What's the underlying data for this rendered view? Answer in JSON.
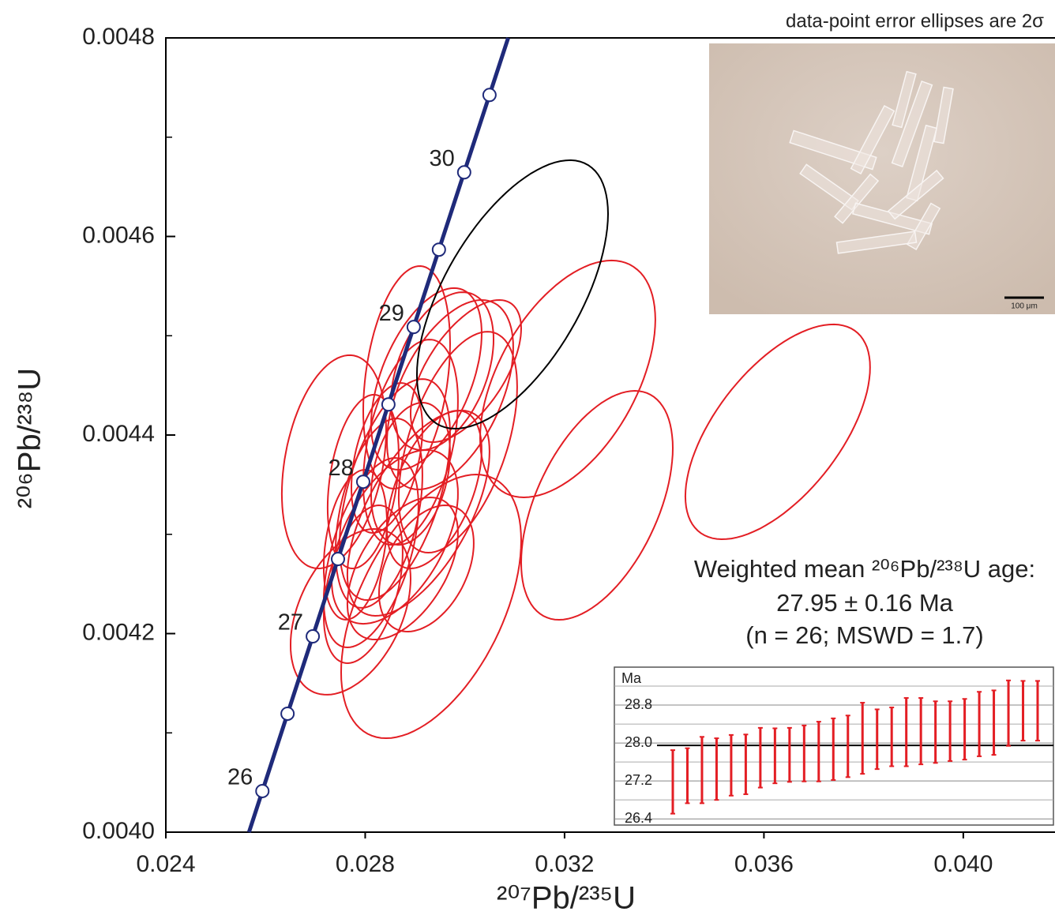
{
  "chart_data": [
    {
      "type": "concordia",
      "x_label": "²⁰⁷Pb/²³⁵U",
      "y_label": "²⁰⁶Pb/²³⁸U",
      "note": "data-point error ellipses are 2σ",
      "annotation": [
        "Weighted mean ²⁰⁶Pb/²³⁸U age:",
        "27.95 ± 0.16 Ma",
        "(n = 26; MSWD = 1.7)"
      ],
      "image_scale_bar": "100 μm",
      "xlim": [
        0.024,
        0.04184
      ],
      "ylim": [
        0.004,
        0.0048
      ],
      "xticks": [
        0.024,
        0.028,
        0.032,
        0.036,
        {
          "value": 0.04,
          "label": "0.040"
        }
      ],
      "yticks": [
        {
          "value": 0.004,
          "label": "0.0040"
        },
        0.0042,
        0.0044,
        0.0046,
        0.0048
      ],
      "minor_yticks": [
        0.0041,
        0.0043,
        0.0045,
        0.0047
      ],
      "concordia": {
        "color": "#1f2a7a",
        "age": [
          26,
          26.5,
          27,
          27.5,
          28,
          28.5,
          29,
          29.5,
          30,
          30.5
        ],
        "x": [
          0.025937,
          0.026442,
          0.026948,
          0.027454,
          0.02796,
          0.028466,
          0.028973,
          0.029479,
          0.029986,
          0.030494
        ],
        "y": [
          0.0040414,
          0.0041193,
          0.0041972,
          0.0042751,
          0.0043529,
          0.0044308,
          0.0045088,
          0.0045867,
          0.0046646,
          0.0047425
        ]
      },
      "series": [
        {
          "color": "#e31e24",
          "x": [
            0.032063,
            0.03265,
            0.036277,
            0.029323,
            0.027374,
            0.027707,
            0.028832,
            0.029228,
            0.029545,
            0.029703,
            0.03002,
            0.028911,
            0.028594,
            0.028277,
            0.028119,
            0.028594,
            0.029069,
            0.02796,
            0.028911,
            0.029386,
            0.028436,
            0.028752,
            0.029861,
            0.02796,
            0.029228,
            0.027802
          ],
          "y": [
            0.0044565,
            0.0043292,
            0.0044032,
            0.0042274,
            0.004373,
            0.0042219,
            0.0044581,
            0.0044565,
            0.0044644,
            0.0044406,
            0.0044644,
            0.0043928,
            0.0043451,
            0.0043213,
            0.0042815,
            0.0042974,
            0.0043213,
            0.0042497,
            0.004361,
            0.0043451,
            0.0043769,
            0.0042656,
            0.0043928,
            0.0043531,
            0.0042656,
            0.0042895
          ],
          "x_err": [
            0.001758,
            0.001521,
            0.001853,
            0.001806,
            0.001046,
            0.001204,
            0.000871,
            0.001109,
            0.00103,
            0.001267,
            0.001109,
            0.00095,
            0.001109,
            0.000871,
            0.00095,
            0.001267,
            0.001426,
            0.000792,
            0.000792,
            0.00095,
            0.000713,
            0.001109,
            0.001188,
            0.000713,
            0.00095,
            0.000634
          ],
          "y_err": [
            0.0001193,
            0.0001153,
            0.0001082,
            0.0001328,
            0.0001074,
            8.35e-05,
            0.0001121,
            9.15e-05,
            7.95e-05,
            9.54e-05,
            7.16e-05,
            0.0001034,
            0.0001113,
            9.54e-05,
            9.54e-05,
            8.75e-05,
            0.0001034,
            7.95e-05,
            7.16e-05,
            7.95e-05,
            7.55e-05,
            7.16e-05,
            0.0001113,
            8.75e-05,
            6.36e-05,
            7.55e-05
          ],
          "rho": [
            0.5,
            0.5,
            0.6,
            0.5,
            0.3,
            0.4,
            0.3,
            0.5,
            0.4,
            0.5,
            0.6,
            0.4,
            0.5,
            0.4,
            0.5,
            0.5,
            0.6,
            0.4,
            0.3,
            0.5,
            0.4,
            0.5,
            0.5,
            0.3,
            0.4,
            0.3
          ]
        },
        {
          "color": "#000000",
          "x": [
            0.030955
          ],
          "y": [
            0.0045416
          ],
          "x_err": [
            0.001917
          ],
          "y_err": [
            0.0001352
          ],
          "rho": [
            0.6
          ]
        }
      ]
    },
    {
      "type": "errorbar",
      "y_label": "Ma",
      "ylim": [
        26.27,
        29.6
      ],
      "yticks": [
        26.4,
        27.2,
        {
          "value": 28,
          "label": "28.0"
        },
        28.8
      ],
      "minor_yticks": [
        26.8,
        27.6,
        28.4,
        29.2
      ],
      "mean": 27.95,
      "color": "#e31e24",
      "values": [
        27.18,
        27.31,
        27.43,
        27.45,
        27.53,
        27.55,
        27.69,
        27.73,
        27.75,
        27.78,
        27.82,
        27.87,
        27.93,
        28.1,
        28.08,
        28.13,
        28.23,
        28.25,
        28.23,
        28.25,
        28.29,
        28.4,
        28.43,
        28.63,
        28.68,
        28.68
      ],
      "errors": [
        0.67,
        0.58,
        0.7,
        0.65,
        0.64,
        0.63,
        0.63,
        0.58,
        0.57,
        0.59,
        0.63,
        0.65,
        0.65,
        0.75,
        0.63,
        0.62,
        0.72,
        0.7,
        0.65,
        0.63,
        0.64,
        0.68,
        0.68,
        0.69,
        0.63,
        0.63
      ]
    }
  ]
}
